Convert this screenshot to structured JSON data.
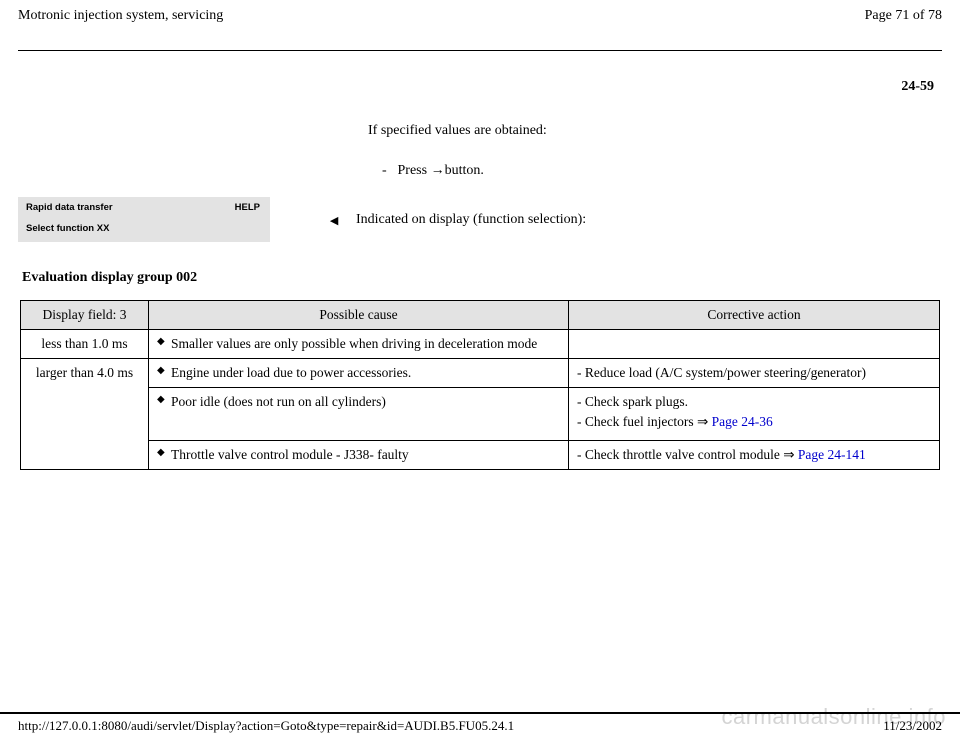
{
  "header": {
    "title": "Motronic injection system, servicing",
    "page_label": "Page 71 of 78"
  },
  "section_number": "24-59",
  "intro": {
    "line1": "If specified values are obtained:",
    "sub_dash": "-",
    "sub_text_prefix": "Press ",
    "sub_text_suffix": "button."
  },
  "display_box": {
    "line1": "Rapid data transfer",
    "help": "HELP",
    "line2": "Select function XX"
  },
  "pointer_glyph": "◂",
  "indicated_text": "Indicated on display (function selection):",
  "section_title": "Evaluation display group 002",
  "table": {
    "headers": [
      "Display field: 3",
      "Possible cause",
      "Corrective action"
    ],
    "row1": {
      "field": "less than 1.0 ms",
      "cause": "Smaller values are only possible when driving in deceleration mode",
      "action": ""
    },
    "row2": {
      "field": "larger than 4.0 ms",
      "causes": [
        "Engine under load due to power accessories.",
        "Poor idle (does not run on all cylinders)",
        "Throttle valve control module - J338- faulty"
      ],
      "actions": {
        "a1": "- Reduce load (A/C system/power steering/generator)",
        "a2_l1": "- Check spark plugs.",
        "a2_l2_prefix": "- Check fuel injectors   ⇒  ",
        "a2_link": "Page 24-36",
        "a3_prefix": "- Check throttle valve control module   ⇒  ",
        "a3_link": "Page 24-141"
      }
    }
  },
  "watermark": "carmanualsonline.info",
  "footer": {
    "url": "http://127.0.0.1:8080/audi/servlet/Display?action=Goto&type=repair&id=AUDI.B5.FU05.24.1",
    "date": "11/23/2002"
  }
}
